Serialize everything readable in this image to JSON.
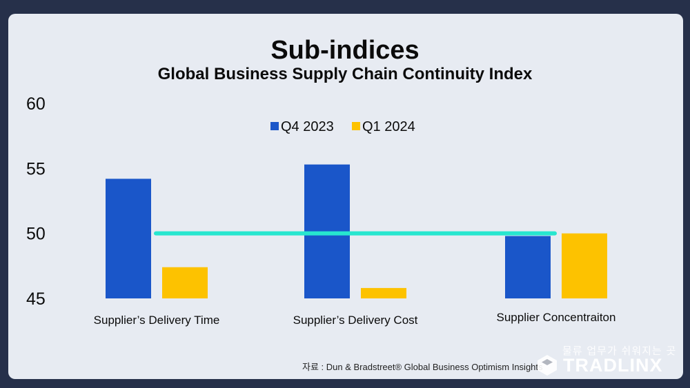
{
  "title": "Sub-indices",
  "subtitle": "Global Business Supply Chain Continuity Index",
  "source": "자료 : Dun & Bradstreet® Global Business Optimism Insights",
  "brand": {
    "tagline": "물류 업무가 쉬워지는 곳",
    "name": "TRADLINX"
  },
  "colors": {
    "q4": "#1a56c9",
    "q1": "#fdc200",
    "reference_line": "#27e6cf",
    "background": "#e7ebf2"
  },
  "chart_data": {
    "type": "bar",
    "title": "Sub-indices",
    "subtitle": "Global Business Supply Chain Continuity Index",
    "categories": [
      "Supplier’s Delivery Time",
      "Supplier’s Delivery Cost",
      "Supplier Concentraiton"
    ],
    "series": [
      {
        "name": "Q4 2023",
        "values": [
          54.2,
          55.3,
          49.8
        ]
      },
      {
        "name": "Q1 2024",
        "values": [
          47.4,
          45.8,
          50.0
        ]
      }
    ],
    "yticks": [
      "60",
      "55",
      "50",
      "45"
    ],
    "ylim": [
      45,
      60
    ],
    "reference_line": 50,
    "legend_position": "top-center",
    "grid": false,
    "xlabel": "",
    "ylabel": ""
  }
}
